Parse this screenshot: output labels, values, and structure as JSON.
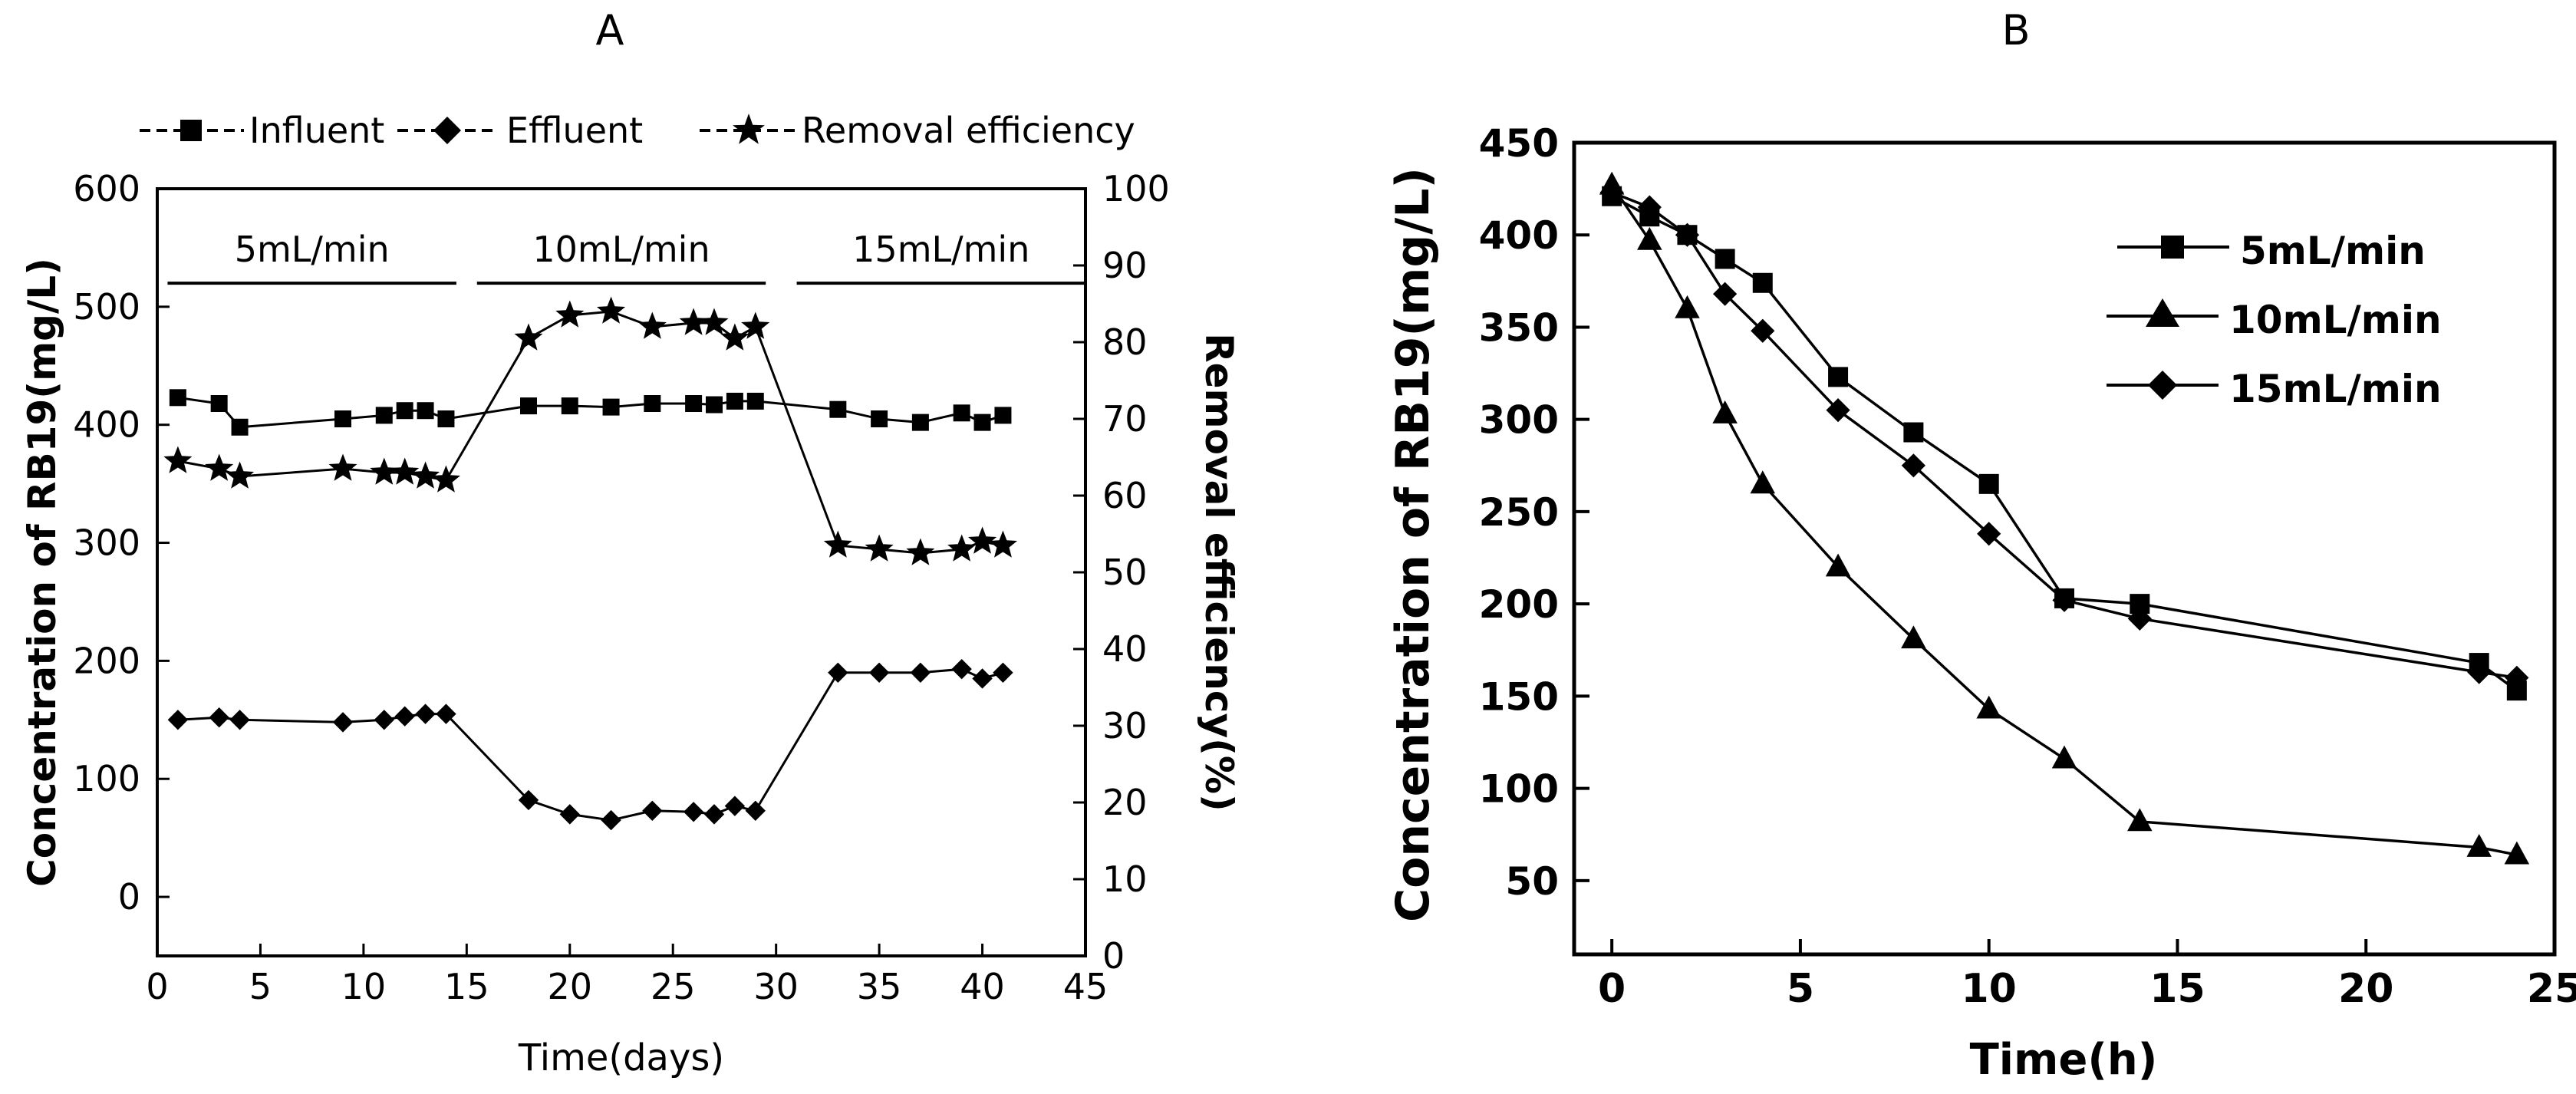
{
  "chart_data": [
    {
      "panel": "A",
      "type": "scatter-line",
      "title": "A",
      "xlabel": "Time(days)",
      "ylabel": "Concentration of RB19(mg/L)",
      "y2label": "Removal efficiency(%)",
      "xlim": [
        0,
        45
      ],
      "ylim": [
        -50,
        600
      ],
      "y2lim": [
        0,
        100
      ],
      "xticks": [
        "0",
        "5",
        "10",
        "15",
        "20",
        "25",
        "30",
        "35",
        "40",
        "45"
      ],
      "yticks": [
        "0",
        "100",
        "200",
        "300",
        "400",
        "500",
        "600"
      ],
      "y2ticks": [
        "0",
        "10",
        "20",
        "30",
        "40",
        "50",
        "60",
        "70",
        "80",
        "90",
        "100"
      ],
      "legend_placement": "top",
      "legend": [
        "Influent",
        "Effluent",
        "Removal efficiency"
      ],
      "phases": [
        {
          "label": "5mL/min",
          "start": 0.5,
          "end": 14.5
        },
        {
          "label": "10mL/min",
          "start": 15.5,
          "end": 29.5
        },
        {
          "label": "15mL/min",
          "start": 31,
          "end": 45
        }
      ],
      "phase_line_y": 520,
      "series": [
        {
          "name": "Influent",
          "marker": "square",
          "axis": "left",
          "x": [
            1,
            3,
            4,
            9,
            11,
            12,
            13,
            14,
            18,
            20,
            22,
            24,
            26,
            27,
            28,
            29,
            33,
            35,
            37,
            39,
            40,
            41
          ],
          "y": [
            423,
            418,
            398,
            405,
            408,
            412,
            412,
            405,
            416,
            416,
            415,
            418,
            418,
            417,
            420,
            420,
            413,
            405,
            402,
            410,
            402,
            408
          ]
        },
        {
          "name": "Effluent",
          "marker": "diamond",
          "axis": "left",
          "x": [
            1,
            3,
            4,
            9,
            11,
            12,
            13,
            14,
            18,
            20,
            22,
            24,
            26,
            27,
            28,
            29,
            33,
            35,
            37,
            39,
            40,
            41
          ],
          "y": [
            150,
            152,
            150,
            148,
            150,
            153,
            155,
            155,
            82,
            70,
            65,
            73,
            72,
            70,
            77,
            73,
            190,
            190,
            190,
            193,
            185,
            190
          ]
        },
        {
          "name": "Removal efficiency",
          "marker": "star",
          "axis": "right",
          "x": [
            1,
            3,
            4,
            9,
            11,
            12,
            13,
            14,
            18,
            20,
            22,
            24,
            26,
            27,
            28,
            29,
            33,
            35,
            37,
            39,
            40,
            41
          ],
          "y": [
            64.5,
            63.5,
            62.5,
            63.5,
            63,
            63,
            62.5,
            62,
            80.5,
            83.5,
            84,
            82,
            82.5,
            82.5,
            80.5,
            82,
            53.5,
            53,
            52.5,
            53,
            54,
            53.5
          ]
        }
      ]
    },
    {
      "panel": "B",
      "type": "scatter-line",
      "title": "B",
      "xlabel": "Time(h)",
      "ylabel": "Concentration of RB19(mg/L)",
      "xlim": [
        -1,
        25
      ],
      "ylim": [
        10,
        450
      ],
      "xticks": [
        "0",
        "5",
        "10",
        "15",
        "20",
        "25"
      ],
      "yticks": [
        "50",
        "100",
        "150",
        "200",
        "250",
        "300",
        "350",
        "400",
        "450"
      ],
      "legend_placement": "top-right",
      "legend": [
        "5mL/min",
        "10mL/min",
        "15mL/min"
      ],
      "series": [
        {
          "name": "5mL/min",
          "marker": "square",
          "x": [
            0,
            1,
            2,
            3,
            4,
            6,
            8,
            10,
            12,
            14,
            23,
            24
          ],
          "y": [
            421,
            410,
            400,
            387,
            374,
            323,
            293,
            265,
            203,
            200,
            168,
            153
          ]
        },
        {
          "name": "10mL/min",
          "marker": "triangle",
          "x": [
            0,
            1,
            2,
            3,
            4,
            6,
            8,
            10,
            12,
            14,
            23,
            24
          ],
          "y": [
            427,
            397,
            360,
            303,
            265,
            220,
            181,
            143,
            116,
            82,
            68,
            64
          ]
        },
        {
          "name": "15mL/min",
          "marker": "diamond",
          "x": [
            0,
            1,
            2,
            3,
            4,
            6,
            8,
            10,
            12,
            14,
            23,
            24
          ],
          "y": [
            423,
            415,
            400,
            368,
            348,
            305,
            275,
            238,
            202,
            192,
            163,
            160
          ]
        }
      ]
    }
  ]
}
